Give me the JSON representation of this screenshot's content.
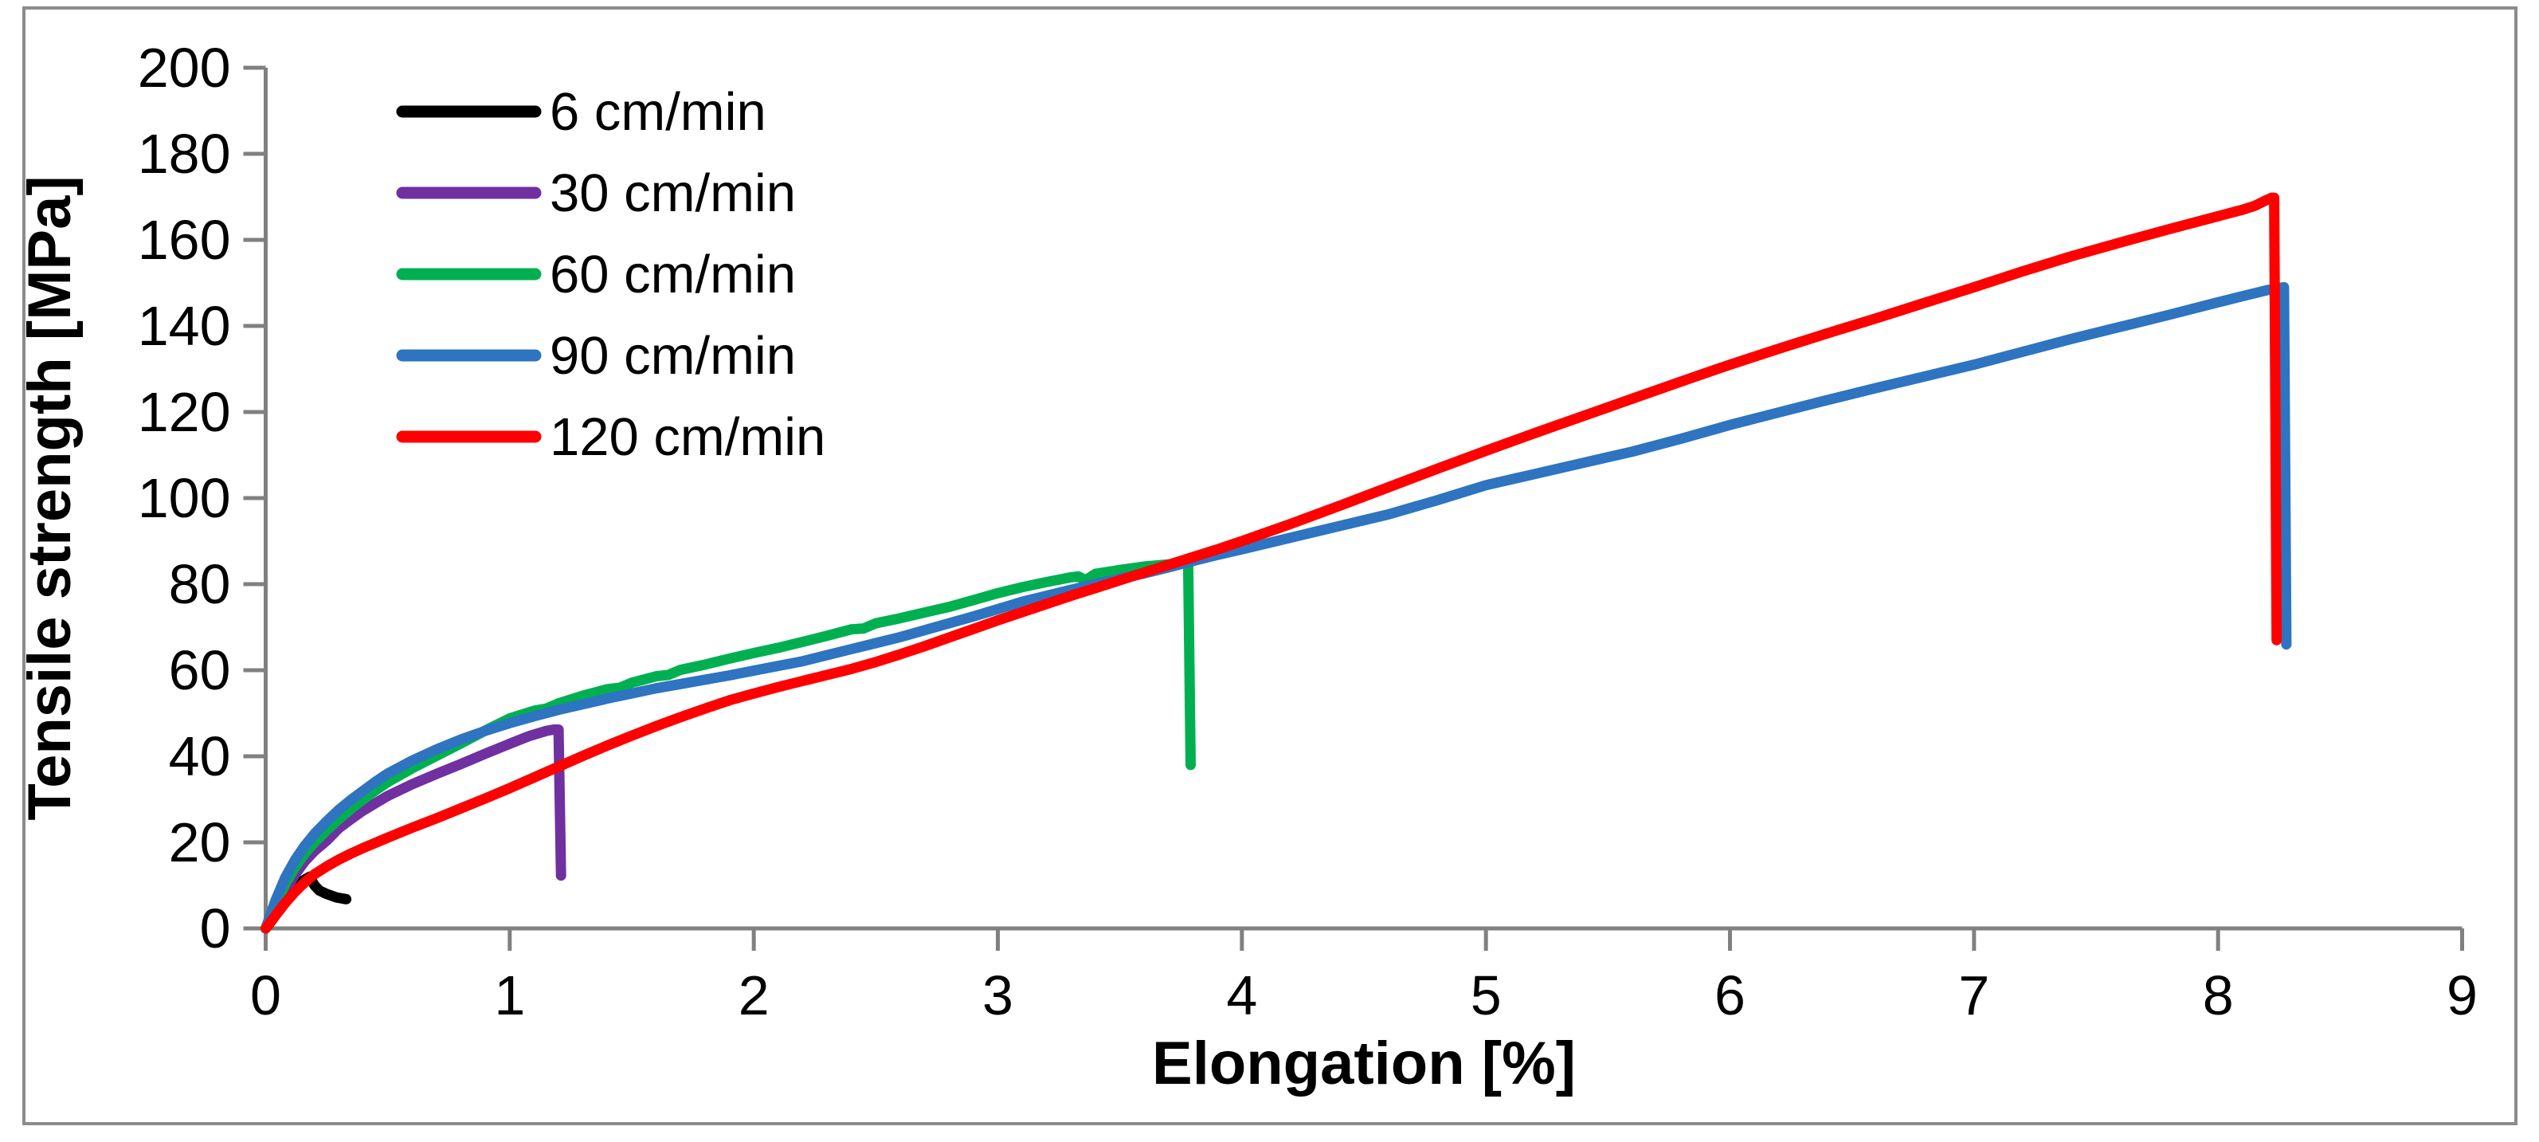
{
  "figure": {
    "background_color": "#FFFFFF",
    "border_color": "#8C8C8C",
    "axis_color": "#808080"
  },
  "chart_data": {
    "type": "line",
    "title": "",
    "xlabel": "Elongation [%]",
    "ylabel": "Tensile strength [MPa]",
    "xlim": [
      0,
      9
    ],
    "ylim": [
      0,
      200
    ],
    "xticks": [
      0,
      1,
      2,
      3,
      4,
      5,
      6,
      7,
      8,
      9
    ],
    "yticks": [
      0,
      20,
      40,
      60,
      80,
      100,
      120,
      140,
      160,
      180,
      200
    ],
    "grid": false,
    "legend_position": "upper-left-inside",
    "series": [
      {
        "name": "6 cm/min",
        "color": "#000000",
        "points": [
          [
            0,
            0
          ],
          [
            0.03,
            2.2
          ],
          [
            0.06,
            4.8
          ],
          [
            0.09,
            7.2
          ],
          [
            0.12,
            9.3
          ],
          [
            0.15,
            11
          ],
          [
            0.18,
            12
          ],
          [
            0.2,
            10
          ],
          [
            0.22,
            8.8
          ],
          [
            0.25,
            8
          ],
          [
            0.29,
            7.2
          ],
          [
            0.33,
            6.8
          ]
        ]
      },
      {
        "name": "30 cm/min",
        "color": "#7030A0",
        "points": [
          [
            0,
            0
          ],
          [
            0.04,
            4.5
          ],
          [
            0.08,
            8.8
          ],
          [
            0.12,
            12.5
          ],
          [
            0.16,
            15.6
          ],
          [
            0.2,
            18
          ],
          [
            0.25,
            20.4
          ],
          [
            0.3,
            23.3
          ],
          [
            0.35,
            25.4
          ],
          [
            0.4,
            27.4
          ],
          [
            0.5,
            30.8
          ],
          [
            0.6,
            33.5
          ],
          [
            0.7,
            35.9
          ],
          [
            0.8,
            38.2
          ],
          [
            0.9,
            40.6
          ],
          [
            1.0,
            42.9
          ],
          [
            1.08,
            44.7
          ],
          [
            1.15,
            45.9
          ],
          [
            1.18,
            46.2
          ],
          [
            1.2,
            46.2
          ],
          [
            1.21,
            12.3
          ]
        ]
      },
      {
        "name": "60 cm/min",
        "color": "#00B050",
        "points": [
          [
            0,
            0
          ],
          [
            0.04,
            5.5
          ],
          [
            0.08,
            10.3
          ],
          [
            0.12,
            14.2
          ],
          [
            0.16,
            17.4
          ],
          [
            0.2,
            20
          ],
          [
            0.25,
            22.8
          ],
          [
            0.3,
            25.4
          ],
          [
            0.35,
            27.8
          ],
          [
            0.4,
            30
          ],
          [
            0.45,
            32.1
          ],
          [
            0.5,
            34
          ],
          [
            0.6,
            37.2
          ],
          [
            0.7,
            40.1
          ],
          [
            0.8,
            43
          ],
          [
            0.9,
            46
          ],
          [
            1.0,
            48.8
          ],
          [
            1.1,
            50.6
          ],
          [
            1.15,
            51.1
          ],
          [
            1.2,
            52.3
          ],
          [
            1.3,
            54.1
          ],
          [
            1.4,
            55.6
          ],
          [
            1.45,
            55.9
          ],
          [
            1.5,
            57.1
          ],
          [
            1.6,
            58.6
          ],
          [
            1.65,
            58.9
          ],
          [
            1.7,
            60.1
          ],
          [
            1.8,
            61.3
          ],
          [
            1.9,
            62.7
          ],
          [
            2.0,
            64
          ],
          [
            2.1,
            65.2
          ],
          [
            2.2,
            66.6
          ],
          [
            2.3,
            68
          ],
          [
            2.4,
            69.5
          ],
          [
            2.45,
            69.7
          ],
          [
            2.5,
            70.9
          ],
          [
            2.6,
            72.1
          ],
          [
            2.7,
            73.4
          ],
          [
            2.8,
            74.7
          ],
          [
            2.9,
            76.3
          ],
          [
            3.0,
            77.9
          ],
          [
            3.1,
            79.3
          ],
          [
            3.2,
            80.5
          ],
          [
            3.3,
            81.6
          ],
          [
            3.33,
            81.8
          ],
          [
            3.36,
            80.9
          ],
          [
            3.4,
            82.4
          ],
          [
            3.5,
            83.3
          ],
          [
            3.6,
            84.1
          ],
          [
            3.7,
            84.6
          ],
          [
            3.76,
            84.9
          ],
          [
            3.78,
            85
          ],
          [
            3.79,
            38
          ]
        ]
      },
      {
        "name": "90 cm/min",
        "color": "#2E74C0",
        "points": [
          [
            0,
            0
          ],
          [
            0.04,
            6.5
          ],
          [
            0.08,
            11.8
          ],
          [
            0.12,
            15.9
          ],
          [
            0.16,
            19.2
          ],
          [
            0.2,
            22
          ],
          [
            0.25,
            24.9
          ],
          [
            0.3,
            27.6
          ],
          [
            0.35,
            29.9
          ],
          [
            0.4,
            32
          ],
          [
            0.45,
            34.1
          ],
          [
            0.5,
            36
          ],
          [
            0.6,
            39
          ],
          [
            0.7,
            41.6
          ],
          [
            0.8,
            43.9
          ],
          [
            0.9,
            45.9
          ],
          [
            1.0,
            47.7
          ],
          [
            1.1,
            49.3
          ],
          [
            1.2,
            50.8
          ],
          [
            1.3,
            52.1
          ],
          [
            1.4,
            53.4
          ],
          [
            1.5,
            54.6
          ],
          [
            1.6,
            55.8
          ],
          [
            1.7,
            56.8
          ],
          [
            1.8,
            57.8
          ],
          [
            1.9,
            58.8
          ],
          [
            2.0,
            59.9
          ],
          [
            2.1,
            61
          ],
          [
            2.2,
            62.1
          ],
          [
            2.3,
            63.5
          ],
          [
            2.4,
            64.9
          ],
          [
            2.5,
            66.3
          ],
          [
            2.6,
            67.7
          ],
          [
            2.7,
            69.3
          ],
          [
            2.8,
            70.9
          ],
          [
            2.9,
            72.5
          ],
          [
            3.0,
            74.2
          ],
          [
            3.1,
            75.9
          ],
          [
            3.2,
            77.3
          ],
          [
            3.3,
            78.7
          ],
          [
            3.4,
            80
          ],
          [
            3.5,
            81.3
          ],
          [
            3.6,
            82.5
          ],
          [
            3.7,
            83.9
          ],
          [
            3.8,
            85.4
          ],
          [
            3.9,
            86.8
          ],
          [
            4.0,
            88.1
          ],
          [
            4.2,
            90.8
          ],
          [
            4.4,
            93.5
          ],
          [
            4.6,
            96.2
          ],
          [
            4.8,
            99.5
          ],
          [
            5.0,
            103
          ],
          [
            5.2,
            105.6
          ],
          [
            5.4,
            108.2
          ],
          [
            5.6,
            110.8
          ],
          [
            5.8,
            113.8
          ],
          [
            6.0,
            117
          ],
          [
            6.2,
            119.9
          ],
          [
            6.4,
            122.8
          ],
          [
            6.6,
            125.6
          ],
          [
            6.8,
            128.3
          ],
          [
            7.0,
            131
          ],
          [
            7.2,
            134
          ],
          [
            7.4,
            137
          ],
          [
            7.6,
            139.8
          ],
          [
            7.8,
            142.6
          ],
          [
            8.0,
            145.5
          ],
          [
            8.1,
            146.9
          ],
          [
            8.2,
            148.3
          ],
          [
            8.27,
            149
          ],
          [
            8.28,
            66
          ]
        ]
      },
      {
        "name": "120 cm/min",
        "color": "#FF0000",
        "points": [
          [
            0,
            0
          ],
          [
            0.04,
            3
          ],
          [
            0.08,
            5.9
          ],
          [
            0.12,
            8.5
          ],
          [
            0.16,
            10.7
          ],
          [
            0.2,
            12.6
          ],
          [
            0.25,
            14.4
          ],
          [
            0.3,
            16
          ],
          [
            0.35,
            17.4
          ],
          [
            0.4,
            18.7
          ],
          [
            0.5,
            21.1
          ],
          [
            0.6,
            23.4
          ],
          [
            0.7,
            25.6
          ],
          [
            0.8,
            27.9
          ],
          [
            0.9,
            30.2
          ],
          [
            1.0,
            32.6
          ],
          [
            1.1,
            35.1
          ],
          [
            1.2,
            37.6
          ],
          [
            1.3,
            40.1
          ],
          [
            1.4,
            42.5
          ],
          [
            1.5,
            44.8
          ],
          [
            1.6,
            47
          ],
          [
            1.7,
            49.1
          ],
          [
            1.8,
            51.1
          ],
          [
            1.9,
            53
          ],
          [
            2.0,
            54.6
          ],
          [
            2.1,
            56.1
          ],
          [
            2.2,
            57.5
          ],
          [
            2.3,
            58.9
          ],
          [
            2.4,
            60.3
          ],
          [
            2.5,
            61.9
          ],
          [
            2.6,
            63.7
          ],
          [
            2.7,
            65.6
          ],
          [
            2.8,
            67.6
          ],
          [
            2.9,
            69.6
          ],
          [
            3.0,
            71.6
          ],
          [
            3.1,
            73.5
          ],
          [
            3.2,
            75.4
          ],
          [
            3.3,
            77.3
          ],
          [
            3.4,
            79.1
          ],
          [
            3.5,
            80.9
          ],
          [
            3.6,
            82.7
          ],
          [
            3.7,
            84.5
          ],
          [
            3.8,
            86.3
          ],
          [
            3.9,
            88.1
          ],
          [
            4.0,
            90
          ],
          [
            4.2,
            94
          ],
          [
            4.4,
            98.2
          ],
          [
            4.6,
            102.5
          ],
          [
            4.8,
            106.8
          ],
          [
            5.0,
            111
          ],
          [
            5.2,
            115.1
          ],
          [
            5.4,
            119.1
          ],
          [
            5.6,
            123.1
          ],
          [
            5.8,
            127.1
          ],
          [
            6.0,
            131
          ],
          [
            6.2,
            134.7
          ],
          [
            6.4,
            138.3
          ],
          [
            6.6,
            141.8
          ],
          [
            6.8,
            145.4
          ],
          [
            7.0,
            149
          ],
          [
            7.2,
            152.7
          ],
          [
            7.4,
            156.2
          ],
          [
            7.6,
            159.4
          ],
          [
            7.8,
            162.5
          ],
          [
            8.0,
            165.5
          ],
          [
            8.1,
            167
          ],
          [
            8.15,
            167.9
          ],
          [
            8.2,
            169.3
          ],
          [
            8.22,
            169.8
          ],
          [
            8.23,
            169.8
          ],
          [
            8.24,
            67
          ]
        ]
      }
    ]
  }
}
